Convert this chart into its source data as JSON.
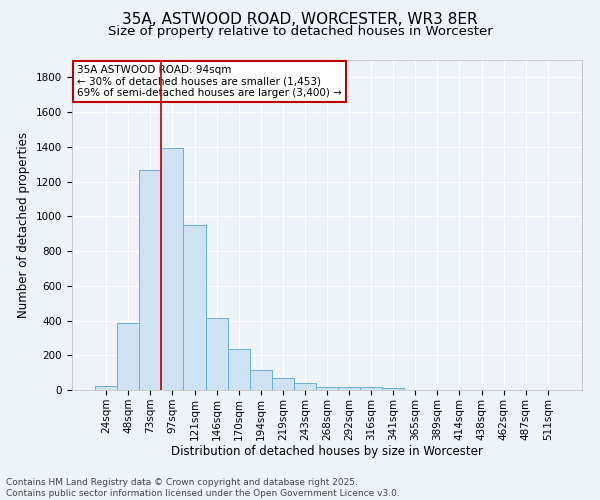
{
  "title_line1": "35A, ASTWOOD ROAD, WORCESTER, WR3 8ER",
  "title_line2": "Size of property relative to detached houses in Worcester",
  "xlabel": "Distribution of detached houses by size in Worcester",
  "ylabel": "Number of detached properties",
  "categories": [
    "24sqm",
    "48sqm",
    "73sqm",
    "97sqm",
    "121sqm",
    "146sqm",
    "170sqm",
    "194sqm",
    "219sqm",
    "243sqm",
    "268sqm",
    "292sqm",
    "316sqm",
    "341sqm",
    "365sqm",
    "389sqm",
    "414sqm",
    "438sqm",
    "462sqm",
    "487sqm",
    "511sqm"
  ],
  "values": [
    25,
    385,
    1265,
    1395,
    950,
    415,
    235,
    115,
    70,
    40,
    20,
    15,
    15,
    10,
    0,
    0,
    0,
    0,
    0,
    0,
    0
  ],
  "bar_color": "#cfe2f3",
  "bar_edge_color": "#6aaed6",
  "vline_color": "#c00000",
  "vline_x": 2.5,
  "annotation_text": "35A ASTWOOD ROAD: 94sqm\n← 30% of detached houses are smaller (1,453)\n69% of semi-detached houses are larger (3,400) →",
  "annotation_box_color": "#ffffff",
  "annotation_box_edge": "#c00000",
  "ylim": [
    0,
    1900
  ],
  "yticks": [
    0,
    200,
    400,
    600,
    800,
    1000,
    1200,
    1400,
    1600,
    1800
  ],
  "background_color": "#eef2f9",
  "grid_color": "#ffffff",
  "footer_line1": "Contains HM Land Registry data © Crown copyright and database right 2025.",
  "footer_line2": "Contains public sector information licensed under the Open Government Licence v3.0.",
  "title_fontsize": 11,
  "subtitle_fontsize": 9.5,
  "axis_label_fontsize": 8.5,
  "tick_fontsize": 7.5,
  "annotation_fontsize": 7.5,
  "footer_fontsize": 6.5
}
